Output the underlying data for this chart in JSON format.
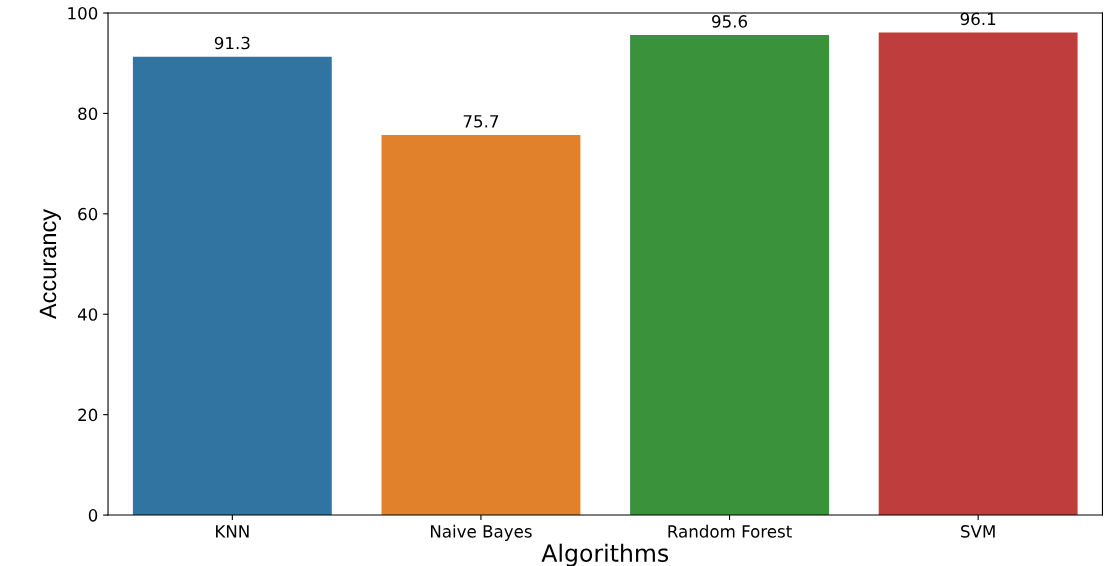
{
  "chart_data": {
    "type": "bar",
    "xlabel": "Algorithms",
    "ylabel": "Accurancy",
    "categories": [
      "KNN",
      "Naive Bayes",
      "Random Forest",
      "SVM"
    ],
    "values": [
      91.3,
      75.7,
      95.6,
      96.1
    ],
    "colors": [
      "#3274a1",
      "#e1812c",
      "#3a923a",
      "#c03d3e"
    ],
    "ylim": [
      0,
      100
    ],
    "yticks": [
      0,
      20,
      40,
      60,
      80,
      100
    ],
    "data_labels": true,
    "grid": false
  }
}
